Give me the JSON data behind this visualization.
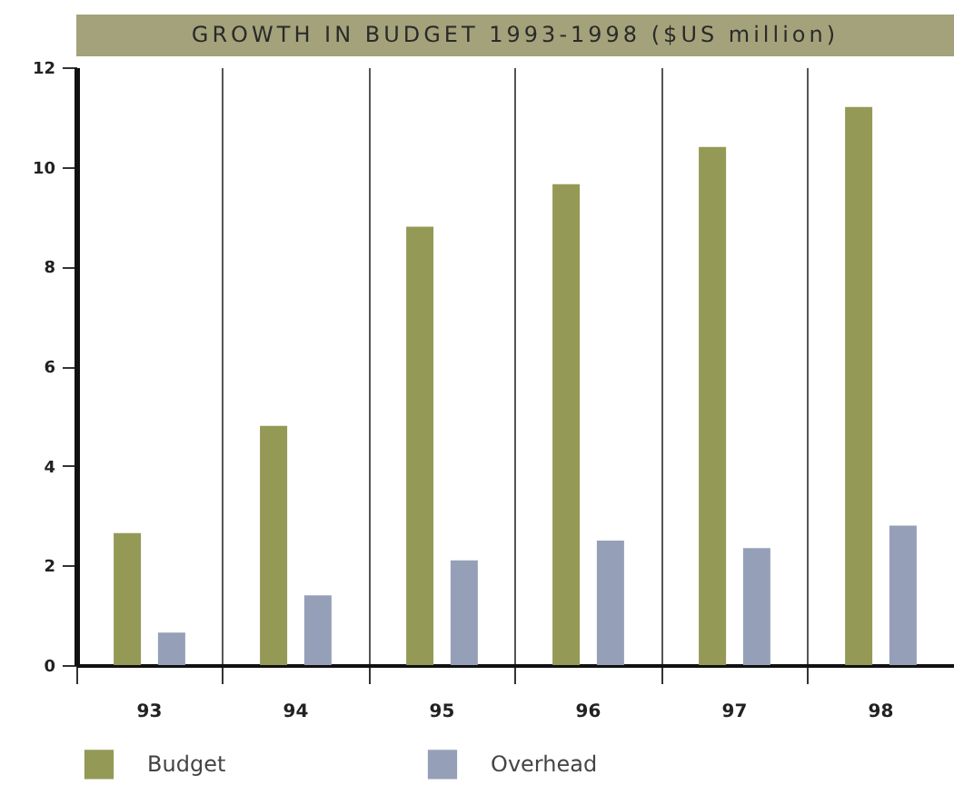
{
  "chart_data": {
    "type": "bar",
    "title": "GROWTH IN BUDGET 1993-1998 ($US million)",
    "categories": [
      "93",
      "94",
      "95",
      "96",
      "97",
      "98"
    ],
    "series": [
      {
        "name": "Budget",
        "color": "#949956",
        "values": [
          2.65,
          4.8,
          8.8,
          9.65,
          10.4,
          11.2
        ]
      },
      {
        "name": "Overhead",
        "color": "#95a0b8",
        "values": [
          0.65,
          1.4,
          2.1,
          2.5,
          2.35,
          2.8
        ]
      }
    ],
    "ylim": [
      0,
      12
    ],
    "yticks": [
      0,
      2,
      4,
      6,
      8,
      10,
      12
    ],
    "grid": "x",
    "legend": "bottom left"
  }
}
